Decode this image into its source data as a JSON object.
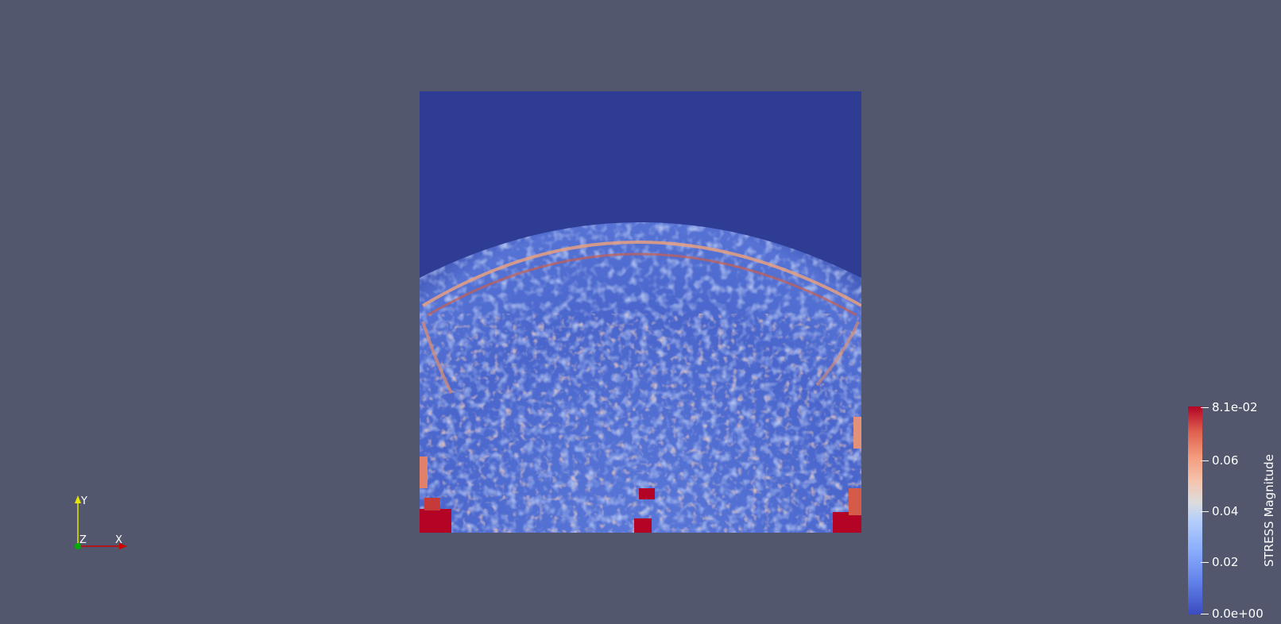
{
  "axes": {
    "x_label": "X",
    "y_label": "Y",
    "z_label": "Z",
    "x_color": "#cc0000",
    "y_color": "#e6e600",
    "z_color": "#00aa00"
  },
  "colorbar": {
    "title": "STRESS Magnitude",
    "max_label": "8.1e-02",
    "tick_006": "0.06",
    "tick_004": "0.04",
    "tick_002": "0.02",
    "min_label": "0.0e+00",
    "colormap": "cool-to-warm"
  },
  "colors": {
    "background": "#52576e",
    "field_low": "#2f3c94",
    "field_mid": "#8db0fe",
    "field_high": "#b40426"
  }
}
